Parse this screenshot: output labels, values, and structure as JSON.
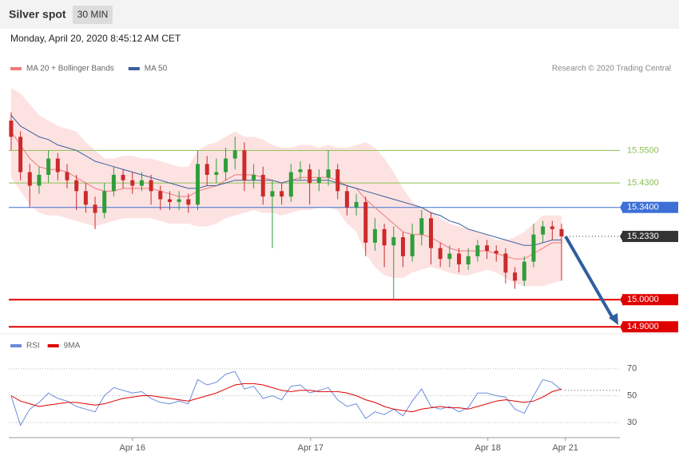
{
  "header": {
    "title": "Silver spot",
    "timeframe": "30 MIN",
    "timestamp": "Monday, April 20, 2020 8:45:12 AM CET",
    "source": "Research © 2020 Trading Central"
  },
  "chart_data": [
    {
      "type": "candlestick",
      "x": [
        0,
        1,
        2,
        3,
        4,
        5,
        6,
        7,
        8,
        9,
        10,
        11,
        12,
        13,
        14,
        15,
        16,
        17,
        18,
        19,
        20,
        21,
        22,
        23,
        24,
        25,
        26,
        27,
        28,
        29,
        30,
        31,
        32,
        33,
        34,
        35,
        36,
        37,
        38,
        39,
        40,
        41,
        42,
        43,
        44,
        45,
        46,
        47,
        48,
        49,
        50,
        51,
        52,
        53,
        54,
        55,
        56,
        57,
        58,
        59
      ],
      "open": [
        15.66,
        15.6,
        15.47,
        15.42,
        15.46,
        15.52,
        15.47,
        15.44,
        15.4,
        15.35,
        15.32,
        15.4,
        15.46,
        15.44,
        15.42,
        15.44,
        15.4,
        15.37,
        15.36,
        15.37,
        15.35,
        15.5,
        15.46,
        15.47,
        15.52,
        15.55,
        15.44,
        15.46,
        15.38,
        15.4,
        15.38,
        15.47,
        15.48,
        15.43,
        15.45,
        15.48,
        15.4,
        15.34,
        15.36,
        15.21,
        15.26,
        15.2,
        15.23,
        15.16,
        15.24,
        15.3,
        15.19,
        15.15,
        15.17,
        15.13,
        15.16,
        15.2,
        15.18,
        15.17,
        15.1,
        15.07,
        15.14,
        15.24,
        15.27,
        15.26
      ],
      "high": [
        15.69,
        15.62,
        15.5,
        15.49,
        15.55,
        15.54,
        15.5,
        15.46,
        15.43,
        15.38,
        15.43,
        15.49,
        15.48,
        15.47,
        15.47,
        15.46,
        15.42,
        15.4,
        15.4,
        15.39,
        15.55,
        15.53,
        15.52,
        15.56,
        15.6,
        15.58,
        15.5,
        15.49,
        15.44,
        15.43,
        15.5,
        15.51,
        15.5,
        15.48,
        15.55,
        15.5,
        15.42,
        15.39,
        15.38,
        15.3,
        15.28,
        15.27,
        15.25,
        15.28,
        15.33,
        15.32,
        15.21,
        15.2,
        15.19,
        15.19,
        15.22,
        15.22,
        15.2,
        15.19,
        15.12,
        15.16,
        15.28,
        15.29,
        15.29,
        15.28
      ],
      "low": [
        15.55,
        15.44,
        15.34,
        15.39,
        15.43,
        15.44,
        15.41,
        15.33,
        15.32,
        15.26,
        15.3,
        15.38,
        15.41,
        15.39,
        15.4,
        15.35,
        15.33,
        15.33,
        15.33,
        15.32,
        15.33,
        15.42,
        15.43,
        15.44,
        15.48,
        15.4,
        15.41,
        15.35,
        15.19,
        15.35,
        15.36,
        15.44,
        15.35,
        15.4,
        15.42,
        15.37,
        15.31,
        15.31,
        15.16,
        15.18,
        15.12,
        15.0,
        15.12,
        15.14,
        15.2,
        15.13,
        15.12,
        15.12,
        15.1,
        15.11,
        15.14,
        15.15,
        15.14,
        15.06,
        15.04,
        15.05,
        15.12,
        15.21,
        15.22,
        15.07
      ],
      "close": [
        15.6,
        15.47,
        15.42,
        15.46,
        15.52,
        15.47,
        15.44,
        15.4,
        15.35,
        15.32,
        15.4,
        15.46,
        15.44,
        15.42,
        15.44,
        15.4,
        15.37,
        15.36,
        15.37,
        15.35,
        15.5,
        15.46,
        15.47,
        15.52,
        15.55,
        15.44,
        15.46,
        15.38,
        15.4,
        15.38,
        15.47,
        15.48,
        15.43,
        15.45,
        15.48,
        15.4,
        15.34,
        15.36,
        15.21,
        15.26,
        15.2,
        15.23,
        15.16,
        15.24,
        15.3,
        15.19,
        15.15,
        15.17,
        15.13,
        15.16,
        15.2,
        15.18,
        15.17,
        15.1,
        15.07,
        15.14,
        15.24,
        15.27,
        15.26,
        15.233
      ],
      "up_color": "#2f9e3a",
      "down_color": "#cc2a2a",
      "series": [
        {
          "name": "MA 20 + Bollinger Bands",
          "color": "#ee7a7a",
          "band_color": "#fde2e2",
          "values": [
            15.62,
            15.57,
            15.52,
            15.49,
            15.48,
            15.48,
            15.47,
            15.45,
            15.43,
            15.41,
            15.4,
            15.4,
            15.41,
            15.41,
            15.41,
            15.41,
            15.4,
            15.39,
            15.38,
            15.38,
            15.4,
            15.41,
            15.42,
            15.44,
            15.46,
            15.46,
            15.46,
            15.45,
            15.44,
            15.43,
            15.44,
            15.45,
            15.45,
            15.45,
            15.45,
            15.44,
            15.42,
            15.41,
            15.37,
            15.34,
            15.31,
            15.28,
            15.25,
            15.24,
            15.24,
            15.23,
            15.21,
            15.19,
            15.18,
            15.18,
            15.18,
            15.18,
            15.17,
            15.16,
            15.15,
            15.15,
            15.17,
            15.19,
            15.21,
            15.21
          ],
          "upper": [
            15.78,
            15.76,
            15.72,
            15.68,
            15.66,
            15.64,
            15.63,
            15.62,
            15.58,
            15.55,
            15.52,
            15.52,
            15.53,
            15.53,
            15.52,
            15.52,
            15.51,
            15.5,
            15.49,
            15.49,
            15.55,
            15.57,
            15.58,
            15.6,
            15.62,
            15.6,
            15.6,
            15.59,
            15.57,
            15.56,
            15.56,
            15.57,
            15.57,
            15.56,
            15.57,
            15.56,
            15.56,
            15.57,
            15.58,
            15.56,
            15.52,
            15.47,
            15.41,
            15.36,
            15.34,
            15.33,
            15.3,
            15.28,
            15.27,
            15.26,
            15.25,
            15.24,
            15.22,
            15.22,
            15.23,
            15.25,
            15.28,
            15.31,
            15.31,
            15.31
          ],
          "lower": [
            15.45,
            15.4,
            15.35,
            15.32,
            15.31,
            15.31,
            15.3,
            15.29,
            15.28,
            15.27,
            15.28,
            15.29,
            15.3,
            15.3,
            15.3,
            15.3,
            15.29,
            15.28,
            15.28,
            15.28,
            15.27,
            15.27,
            15.28,
            15.3,
            15.31,
            15.32,
            15.33,
            15.32,
            15.32,
            15.31,
            15.32,
            15.33,
            15.33,
            15.34,
            15.34,
            15.33,
            15.28,
            15.25,
            15.17,
            15.12,
            15.09,
            15.08,
            15.08,
            15.1,
            15.11,
            15.12,
            15.11,
            15.1,
            15.09,
            15.09,
            15.1,
            15.11,
            15.1,
            15.08,
            15.06,
            15.05,
            15.05,
            15.05,
            15.06,
            15.07
          ]
        },
        {
          "name": "MA 50",
          "color": "#3a5f9e",
          "values": [
            15.68,
            15.64,
            15.62,
            15.6,
            15.59,
            15.57,
            15.56,
            15.55,
            15.53,
            15.51,
            15.5,
            15.49,
            15.48,
            15.47,
            15.46,
            15.45,
            15.44,
            15.43,
            15.42,
            15.41,
            15.41,
            15.42,
            15.42,
            15.43,
            15.44,
            15.44,
            15.44,
            15.44,
            15.44,
            15.43,
            15.44,
            15.44,
            15.44,
            15.44,
            15.44,
            15.43,
            15.42,
            15.41,
            15.4,
            15.39,
            15.38,
            15.37,
            15.36,
            15.35,
            15.34,
            15.32,
            15.31,
            15.29,
            15.28,
            15.26,
            15.25,
            15.24,
            15.23,
            15.22,
            15.21,
            15.2,
            15.2,
            15.21,
            15.22,
            15.22
          ]
        }
      ],
      "levels": [
        {
          "value": 15.55,
          "label": "15.5500",
          "color": "#8cc152",
          "boxed": false,
          "dotted": false
        },
        {
          "value": 15.43,
          "label": "15.4300",
          "color": "#8cc152",
          "boxed": false,
          "dotted": false
        },
        {
          "value": 15.34,
          "label": "15.3400",
          "color": "#3d6fd6",
          "boxed": true,
          "dotted": false
        },
        {
          "value": 15.233,
          "label": "15.2330",
          "color": "#333333",
          "boxed": true,
          "dotted": true
        },
        {
          "value": 15.0,
          "label": "15.0000",
          "color": "#e00000",
          "boxed": true,
          "dotted": false
        },
        {
          "value": 14.9,
          "label": "14.9000",
          "color": "#e00000",
          "boxed": true,
          "dotted": false
        }
      ],
      "xlim": [
        -0.25,
        65.25
      ],
      "ylim": [
        14.88,
        15.81
      ]
    },
    {
      "type": "line",
      "x": [
        0,
        1,
        2,
        3,
        4,
        5,
        6,
        7,
        8,
        9,
        10,
        11,
        12,
        13,
        14,
        15,
        16,
        17,
        18,
        19,
        20,
        21,
        22,
        23,
        24,
        25,
        26,
        27,
        28,
        29,
        30,
        31,
        32,
        33,
        34,
        35,
        36,
        37,
        38,
        39,
        40,
        41,
        42,
        43,
        44,
        45,
        46,
        47,
        48,
        49,
        50,
        51,
        52,
        53,
        54,
        55,
        56,
        57,
        58,
        59
      ],
      "series": [
        {
          "name": "RSI",
          "color": "#6b8cdc",
          "values": [
            50,
            28,
            40,
            45,
            52,
            48,
            46,
            42,
            40,
            38,
            50,
            56,
            54,
            52,
            53,
            48,
            45,
            44,
            46,
            44,
            62,
            58,
            60,
            66,
            68,
            55,
            57,
            48,
            50,
            47,
            57,
            58,
            52,
            54,
            56,
            47,
            42,
            44,
            33,
            38,
            36,
            40,
            35,
            46,
            55,
            42,
            40,
            42,
            38,
            41,
            52,
            52,
            50,
            49,
            40,
            37,
            50,
            62,
            60,
            54
          ]
        },
        {
          "name": "9MA",
          "color": "#e00000",
          "values": [
            50,
            46,
            44,
            42,
            43,
            44,
            45,
            45,
            44,
            43,
            44,
            46,
            48,
            49,
            50,
            50,
            49,
            48,
            47,
            46,
            48,
            50,
            52,
            55,
            58,
            59,
            59,
            58,
            56,
            54,
            53,
            54,
            54,
            53,
            53,
            53,
            52,
            50,
            47,
            45,
            42,
            40,
            39,
            38,
            40,
            41,
            42,
            41,
            41,
            40,
            42,
            44,
            46,
            47,
            46,
            45,
            46,
            49,
            53,
            55
          ]
        }
      ],
      "xlim": [
        -0.25,
        65.25
      ],
      "xticks": [
        {
          "value": 13,
          "label": "Apr 16"
        },
        {
          "value": 32.1,
          "label": "Apr 17"
        },
        {
          "value": 51.1,
          "label": "Apr 18"
        },
        {
          "value": 59.4,
          "label": "Apr 21"
        }
      ],
      "ylim": [
        20,
        80
      ],
      "yticks": [
        30,
        50,
        70
      ],
      "grid": true
    }
  ]
}
